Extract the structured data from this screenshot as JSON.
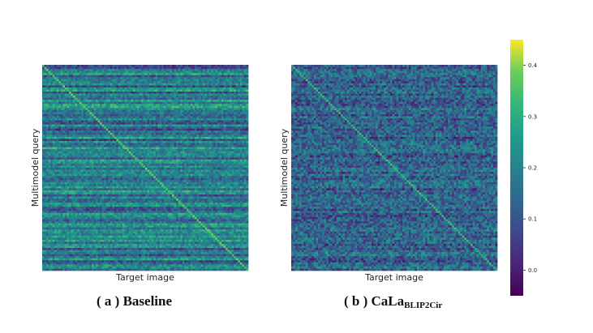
{
  "chart_data": [
    {
      "type": "heatmap",
      "panel": "a",
      "xlabel": "Target image",
      "ylabel": "Multimodel query",
      "caption": "( a ) Baseline",
      "description": "Similarity matrix with bright diagonal, strong horizontal row banding",
      "grid": false,
      "colormap": "viridis",
      "value_range": [
        -0.05,
        0.45
      ],
      "matrix_size": 100,
      "diagonal_value": 0.37,
      "off_diagonal_mean": 0.18,
      "row_banding": "strong"
    },
    {
      "type": "heatmap",
      "panel": "b",
      "xlabel": "Target image",
      "ylabel": "Multimodel query",
      "caption_main": "( b ) CaLa",
      "caption_sub": "BLIP2Cir",
      "description": "Similarity matrix with bright diagonal, weaker banding and lower off-diagonal values",
      "grid": false,
      "colormap": "viridis",
      "value_range": [
        -0.05,
        0.45
      ],
      "matrix_size": 100,
      "diagonal_value": 0.33,
      "off_diagonal_mean": 0.13,
      "row_banding": "weak"
    }
  ],
  "colorbar": {
    "min": -0.05,
    "max": 0.45,
    "ticks": [
      0.0,
      0.1,
      0.2,
      0.3,
      0.4
    ],
    "tick_labels": [
      "0.0",
      "0.1",
      "0.2",
      "0.3",
      "0.4"
    ],
    "colormap": "viridis"
  }
}
